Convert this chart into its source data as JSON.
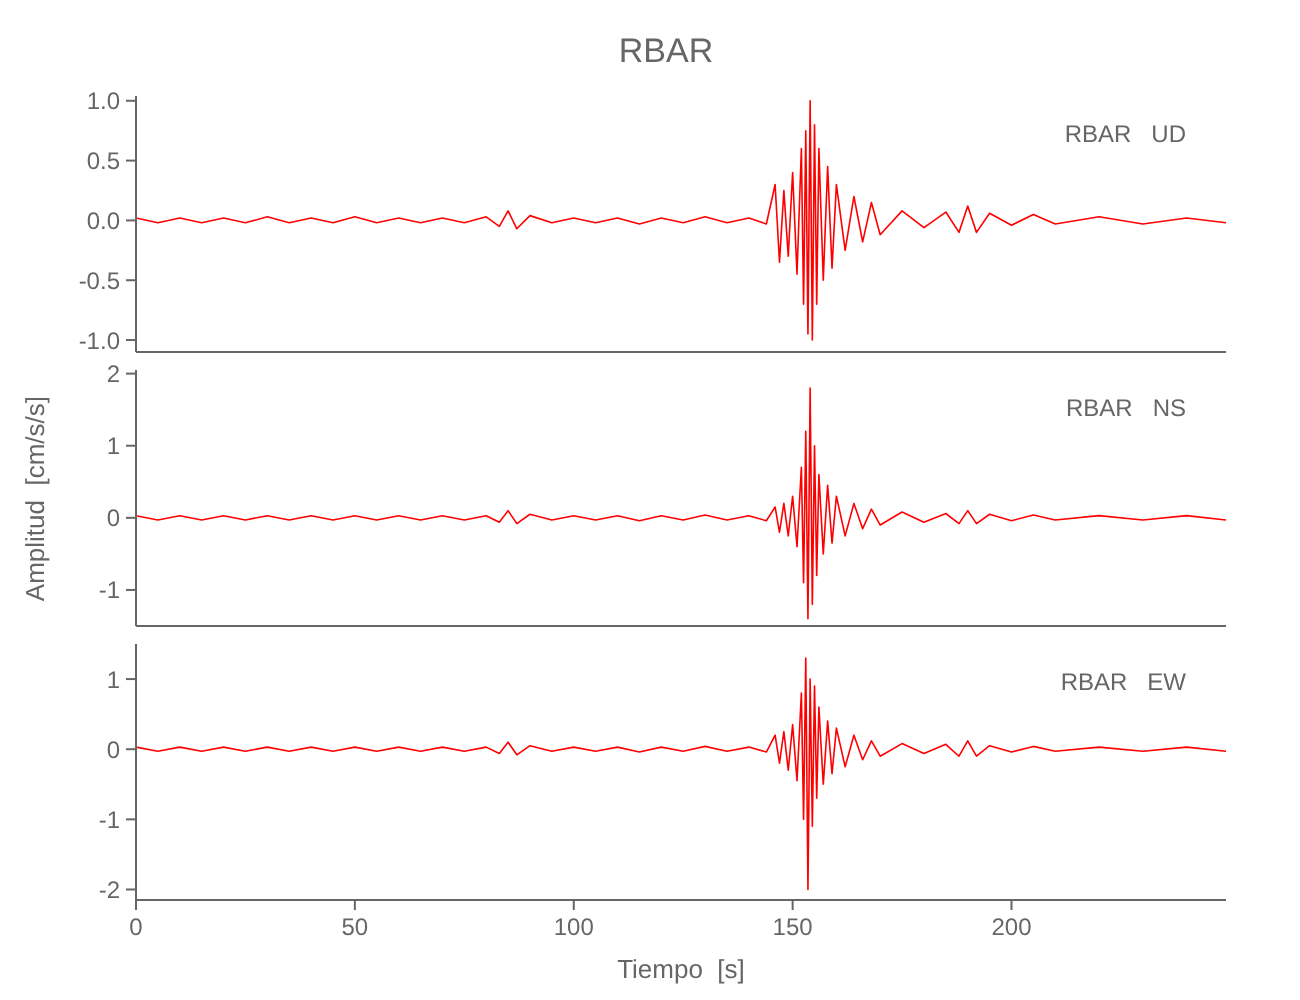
{
  "chart_data": [
    {
      "type": "line",
      "title": "RBAR",
      "annotations": [
        "RBAR   UD"
      ],
      "tick_labels": "y",
      "xlim": [
        0,
        249
      ],
      "xticks": [
        0,
        50,
        100,
        150,
        200
      ],
      "ylim": [
        -1.1,
        1.04
      ],
      "yticks": [
        {
          "value": -1,
          "label": "-1.0"
        },
        {
          "value": -0.5,
          "label": "-0.5"
        },
        {
          "value": 0,
          "label": "0.0"
        },
        {
          "value": 0.5,
          "label": "0.5"
        },
        {
          "value": 1,
          "label": "1.0"
        }
      ],
      "x": [
        0,
        5,
        10,
        15,
        20,
        25,
        30,
        35,
        40,
        45,
        50,
        55,
        60,
        65,
        70,
        75,
        80,
        83,
        85,
        87,
        90,
        95,
        100,
        105,
        110,
        115,
        120,
        125,
        130,
        135,
        140,
        144,
        146,
        147,
        148,
        149,
        150,
        151,
        152,
        152.5,
        153,
        153.5,
        154,
        154.5,
        155,
        155.5,
        156,
        157,
        158,
        159,
        160,
        162,
        164,
        166,
        168,
        170,
        175,
        180,
        185,
        188,
        190,
        192,
        195,
        200,
        205,
        210,
        220,
        230,
        240,
        249
      ],
      "series": [
        {
          "color": "#ff0000",
          "values": [
            0.02,
            -0.02,
            0.02,
            -0.02,
            0.02,
            -0.02,
            0.03,
            -0.02,
            0.02,
            -0.02,
            0.03,
            -0.02,
            0.02,
            -0.02,
            0.02,
            -0.02,
            0.03,
            -0.05,
            0.08,
            -0.07,
            0.04,
            -0.02,
            0.02,
            -0.02,
            0.02,
            -0.03,
            0.02,
            -0.02,
            0.03,
            -0.02,
            0.02,
            -0.03,
            0.3,
            -0.35,
            0.25,
            -0.3,
            0.4,
            -0.45,
            0.6,
            -0.7,
            0.75,
            -0.95,
            1.0,
            -1.0,
            0.8,
            -0.7,
            0.6,
            -0.5,
            0.45,
            -0.4,
            0.3,
            -0.25,
            0.2,
            -0.18,
            0.15,
            -0.12,
            0.08,
            -0.06,
            0.07,
            -0.1,
            0.12,
            -0.1,
            0.06,
            -0.04,
            0.05,
            -0.03,
            0.03,
            -0.03,
            0.02,
            -0.02
          ]
        }
      ]
    },
    {
      "type": "line",
      "ylabel": "Amplitud  [cm/s/s]",
      "annotations": [
        "RBAR   NS"
      ],
      "tick_labels": "y",
      "xlim": [
        0,
        249
      ],
      "xticks": [
        0,
        50,
        100,
        150,
        200
      ],
      "ylim": [
        -1.5,
        2.05
      ],
      "yticks": [
        -1,
        0,
        1,
        2
      ],
      "x": [
        0,
        5,
        10,
        15,
        20,
        25,
        30,
        35,
        40,
        45,
        50,
        55,
        60,
        65,
        70,
        75,
        80,
        83,
        85,
        87,
        90,
        95,
        100,
        105,
        110,
        115,
        120,
        125,
        130,
        135,
        140,
        144,
        146,
        147,
        148,
        149,
        150,
        151,
        152,
        152.5,
        153,
        153.5,
        154,
        154.5,
        155,
        155.5,
        156,
        157,
        158,
        159,
        160,
        162,
        164,
        166,
        168,
        170,
        175,
        180,
        185,
        188,
        190,
        192,
        195,
        200,
        205,
        210,
        220,
        230,
        240,
        249
      ],
      "series": [
        {
          "color": "#ff0000",
          "values": [
            0.03,
            -0.03,
            0.03,
            -0.03,
            0.03,
            -0.03,
            0.03,
            -0.03,
            0.03,
            -0.03,
            0.03,
            -0.03,
            0.03,
            -0.03,
            0.03,
            -0.03,
            0.03,
            -0.06,
            0.1,
            -0.08,
            0.05,
            -0.03,
            0.03,
            -0.03,
            0.03,
            -0.04,
            0.03,
            -0.03,
            0.04,
            -0.03,
            0.03,
            -0.04,
            0.15,
            -0.2,
            0.2,
            -0.25,
            0.3,
            -0.4,
            0.7,
            -0.9,
            1.2,
            -1.4,
            1.8,
            -1.2,
            1.0,
            -0.8,
            0.6,
            -0.5,
            0.45,
            -0.35,
            0.3,
            -0.25,
            0.2,
            -0.15,
            0.12,
            -0.1,
            0.08,
            -0.06,
            0.06,
            -0.08,
            0.1,
            -0.08,
            0.05,
            -0.04,
            0.04,
            -0.03,
            0.03,
            -0.03,
            0.03,
            -0.03
          ]
        }
      ]
    },
    {
      "type": "line",
      "xlabel": "Tiempo  [s]",
      "annotations": [
        "RBAR   EW"
      ],
      "xlim": [
        0,
        249
      ],
      "xticks": [
        0,
        50,
        100,
        150,
        200
      ],
      "ylim": [
        -2.15,
        1.5
      ],
      "yticks": [
        -2,
        -1,
        0,
        1
      ],
      "x": [
        0,
        5,
        10,
        15,
        20,
        25,
        30,
        35,
        40,
        45,
        50,
        55,
        60,
        65,
        70,
        75,
        80,
        83,
        85,
        87,
        90,
        95,
        100,
        105,
        110,
        115,
        120,
        125,
        130,
        135,
        140,
        144,
        146,
        147,
        148,
        149,
        150,
        151,
        152,
        152.5,
        153,
        153.5,
        154,
        154.5,
        155,
        155.5,
        156,
        157,
        158,
        159,
        160,
        162,
        164,
        166,
        168,
        170,
        175,
        180,
        185,
        188,
        190,
        192,
        195,
        200,
        205,
        210,
        220,
        230,
        240,
        249
      ],
      "series": [
        {
          "color": "#ff0000",
          "values": [
            0.03,
            -0.03,
            0.03,
            -0.03,
            0.03,
            -0.03,
            0.03,
            -0.03,
            0.03,
            -0.03,
            0.03,
            -0.03,
            0.03,
            -0.03,
            0.03,
            -0.03,
            0.03,
            -0.06,
            0.1,
            -0.08,
            0.05,
            -0.03,
            0.03,
            -0.03,
            0.03,
            -0.04,
            0.03,
            -0.03,
            0.04,
            -0.03,
            0.03,
            -0.04,
            0.2,
            -0.2,
            0.25,
            -0.3,
            0.35,
            -0.45,
            0.8,
            -1.0,
            1.3,
            -2.0,
            1.0,
            -1.1,
            0.9,
            -0.7,
            0.6,
            -0.5,
            0.4,
            -0.35,
            0.3,
            -0.25,
            0.2,
            -0.15,
            0.12,
            -0.1,
            0.08,
            -0.06,
            0.07,
            -0.1,
            0.12,
            -0.1,
            0.05,
            -0.04,
            0.04,
            -0.03,
            0.03,
            -0.03,
            0.03,
            -0.03
          ]
        }
      ]
    }
  ]
}
